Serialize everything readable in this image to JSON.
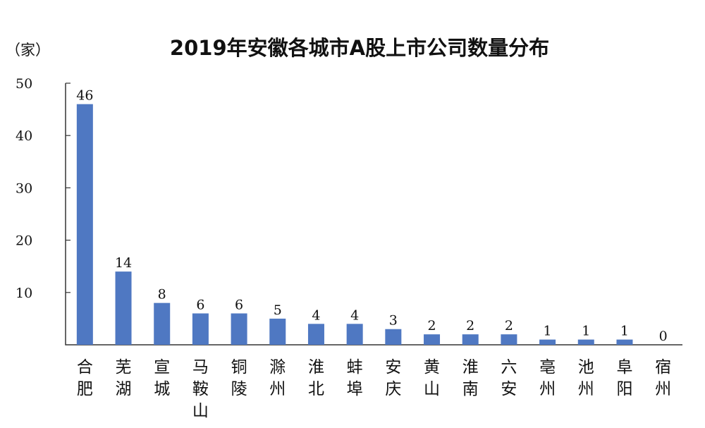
{
  "chart_data": {
    "type": "bar",
    "title": "2019年安徽各城市A股上市公司数量分布",
    "unit": "（家）",
    "ylabel": "",
    "xlabel": "",
    "ylim": [
      0,
      50
    ],
    "yticks": [
      "10",
      "20",
      "30",
      "40",
      "50"
    ],
    "grid": false,
    "categories": [
      "合肥",
      "芜湖",
      "宣城",
      "马鞍山",
      "铜陵",
      "滁州",
      "淮北",
      "蚌埠",
      "安庆",
      "黄山",
      "淮南",
      "六安",
      "亳州",
      "池州",
      "阜阳",
      "宿州"
    ],
    "values": [
      46,
      14,
      8,
      6,
      6,
      5,
      4,
      4,
      3,
      2,
      2,
      2,
      1,
      1,
      1,
      0
    ],
    "bar_color": "#4f78c2"
  }
}
